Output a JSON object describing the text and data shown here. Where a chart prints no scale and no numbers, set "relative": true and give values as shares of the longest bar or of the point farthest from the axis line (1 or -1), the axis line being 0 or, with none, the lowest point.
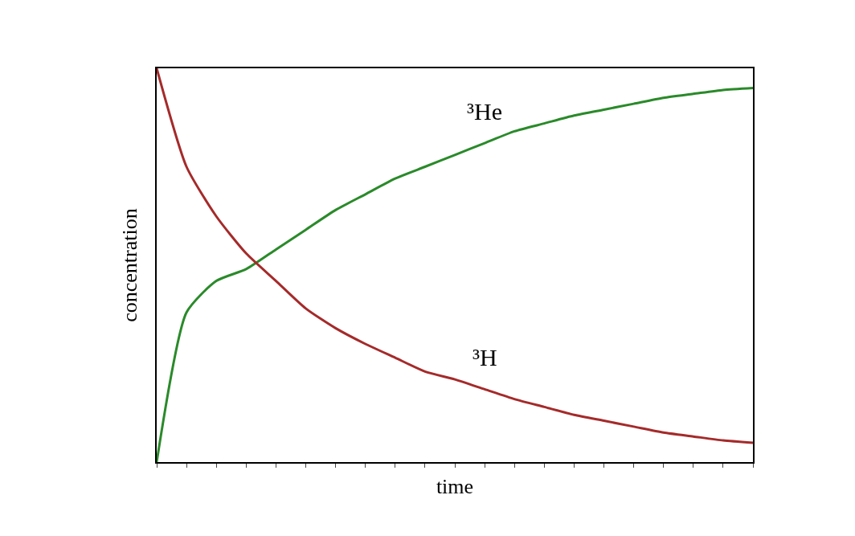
{
  "chart_data": {
    "type": "line",
    "relative": true,
    "xlabel": "time",
    "ylabel": "concentration",
    "tick_labels": false,
    "legend": false,
    "marker": "none",
    "line_style": "solid",
    "categories": [
      null,
      null,
      null,
      null,
      null,
      null,
      null,
      null,
      null,
      null,
      null,
      null,
      null,
      null,
      null,
      null,
      null,
      null,
      null,
      null,
      null
    ],
    "series": [
      {
        "name": "³He",
        "color": "#2a8a2a",
        "values": [
          0,
          0.38,
          0.46,
          0.49,
          0.54,
          0.59,
          0.64,
          0.68,
          0.72,
          0.75,
          0.78,
          0.81,
          0.84,
          0.86,
          0.88,
          0.895,
          0.91,
          0.925,
          0.935,
          0.945,
          0.95
        ]
      },
      {
        "name": "³H",
        "color": "#a52a2a",
        "values": [
          1.0,
          0.75,
          0.624,
          0.53,
          0.46,
          0.39,
          0.34,
          0.3,
          0.265,
          0.23,
          0.21,
          0.185,
          0.16,
          0.14,
          0.12,
          0.105,
          0.09,
          0.075,
          0.065,
          0.055,
          0.049
        ]
      }
    ]
  }
}
